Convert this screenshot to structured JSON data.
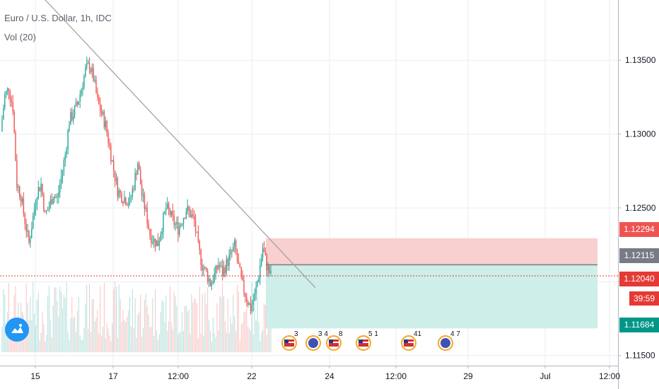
{
  "header": {
    "symbol": "Euro / U.S. Dollar, 1h, IDC",
    "volume_indicator": "Vol (20)"
  },
  "price_tags": {
    "stop_loss": "1.12294",
    "entry": "1.12115",
    "last_price": "1.12040",
    "countdown": "39:59",
    "take_profit": "1.11684"
  },
  "colors": {
    "up": "#26a69a",
    "down": "#ef5350",
    "stop_zone": "#f8d0cf",
    "target_zone": "#cdeee9",
    "entry_line": "#787b86",
    "last_price": "#e53935",
    "trendline": "#9e9e9e",
    "logo": "#2196f3"
  },
  "icons": [
    "logo-cloud-icon",
    "us-flag-icon",
    "eu-flag-icon"
  ],
  "chart_data": {
    "type": "candlestick",
    "title": "Euro / U.S. Dollar, 1h, IDC",
    "y_ticks": [
      "1.13500",
      "1.13000",
      "1.12500",
      "1.12000",
      "1.11500"
    ],
    "ylim": [
      1.1147,
      1.1386
    ],
    "x_ticks": [
      "15",
      "17",
      "12:00",
      "22",
      "24",
      "12:00",
      "29",
      "Jul",
      "12:00"
    ],
    "grid": true,
    "price_path": [
      1.1302,
      1.1326,
      1.1331,
      1.1318,
      1.1266,
      1.1258,
      1.1241,
      1.1226,
      1.1244,
      1.1261,
      1.1266,
      1.1245,
      1.1251,
      1.1259,
      1.1256,
      1.1271,
      1.1286,
      1.1309,
      1.1314,
      1.132,
      1.1331,
      1.1343,
      1.1347,
      1.1338,
      1.1322,
      1.1314,
      1.1306,
      1.1291,
      1.1276,
      1.1262,
      1.1258,
      1.1256,
      1.1254,
      1.1266,
      1.1281,
      1.1259,
      1.1247,
      1.1232,
      1.1228,
      1.1226,
      1.1238,
      1.125,
      1.1246,
      1.124,
      1.1236,
      1.1242,
      1.1249,
      1.1246,
      1.1241,
      1.1223,
      1.1211,
      1.1206,
      1.1199,
      1.1204,
      1.1212,
      1.1206,
      1.1212,
      1.1218,
      1.1224,
      1.121,
      1.1197,
      1.1189,
      1.1182,
      1.119,
      1.1205,
      1.1223,
      1.1211,
      1.1204
    ],
    "trendline": {
      "from": [
        "15",
        1.1398
      ],
      "to": [
        "24",
        1.1196
      ]
    },
    "levels": {
      "stop_loss": 1.12294,
      "entry": 1.12115,
      "last_price": 1.1204,
      "take_profit": 1.11684
    },
    "events": [
      {
        "country": "US",
        "label": "3"
      },
      {
        "country": "EU",
        "label": "3 4"
      },
      {
        "country": "US",
        "label": "8"
      },
      {
        "country": "US",
        "label": "5 1"
      },
      {
        "country": "US",
        "label": "41"
      },
      {
        "country": "EU",
        "label": "4 7"
      }
    ]
  }
}
